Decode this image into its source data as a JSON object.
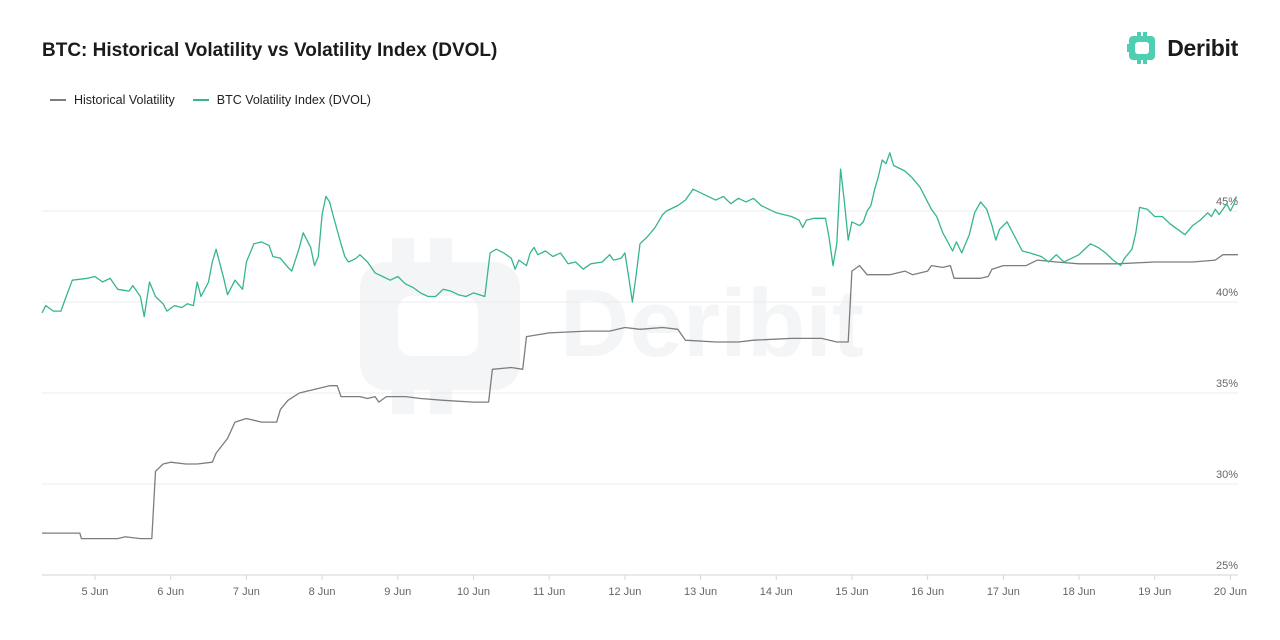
{
  "header": {
    "title": "BTC: Historical Volatility vs Volatility Index (DVOL)"
  },
  "brand": {
    "name": "Deribit",
    "accent": "#4ecfb1",
    "icon": "deribit-logo-icon"
  },
  "watermark": {
    "text": "Deribit"
  },
  "colors": {
    "hv": "#7d7d7d",
    "dvol": "#36b592",
    "grid": "#ececec",
    "axis": "#d6d6d6"
  },
  "chart_data": {
    "type": "line",
    "title": "BTC: Historical Volatility vs Volatility Index (DVOL)",
    "xlabel": "",
    "ylabel": "",
    "x_unit": "days since 4 Jun 00:00",
    "xlim": [
      4.3,
      20.1
    ],
    "ylim": [
      25,
      50
    ],
    "y_ticks": [
      {
        "value": 25,
        "label": "25%"
      },
      {
        "value": 30,
        "label": "30%"
      },
      {
        "value": 35,
        "label": "35%"
      },
      {
        "value": 40,
        "label": "40%"
      },
      {
        "value": 45,
        "label": "45%"
      }
    ],
    "x_ticks": [
      {
        "value": 5,
        "label": "5 Jun"
      },
      {
        "value": 6,
        "label": "6 Jun"
      },
      {
        "value": 7,
        "label": "7 Jun"
      },
      {
        "value": 8,
        "label": "8 Jun"
      },
      {
        "value": 9,
        "label": "9 Jun"
      },
      {
        "value": 10,
        "label": "10 Jun"
      },
      {
        "value": 11,
        "label": "11 Jun"
      },
      {
        "value": 12,
        "label": "12 Jun"
      },
      {
        "value": 13,
        "label": "13 Jun"
      },
      {
        "value": 14,
        "label": "14 Jun"
      },
      {
        "value": 15,
        "label": "15 Jun"
      },
      {
        "value": 16,
        "label": "16 Jun"
      },
      {
        "value": 17,
        "label": "17 Jun"
      },
      {
        "value": 18,
        "label": "18 Jun"
      },
      {
        "value": 19,
        "label": "19 Jun"
      },
      {
        "value": 20,
        "label": "20 Jun"
      }
    ],
    "grid": true,
    "legend": "top-left",
    "series": [
      {
        "name": "Historical Volatility",
        "key": "hv",
        "points": [
          [
            4.3,
            27.3
          ],
          [
            4.8,
            27.3
          ],
          [
            4.82,
            27.0
          ],
          [
            5.2,
            27.0
          ],
          [
            5.3,
            27.0
          ],
          [
            5.4,
            27.1
          ],
          [
            5.6,
            27.0
          ],
          [
            5.75,
            27.0
          ],
          [
            5.8,
            30.7
          ],
          [
            5.9,
            31.1
          ],
          [
            6.0,
            31.2
          ],
          [
            6.2,
            31.1
          ],
          [
            6.35,
            31.1
          ],
          [
            6.55,
            31.2
          ],
          [
            6.6,
            31.7
          ],
          [
            6.75,
            32.5
          ],
          [
            6.85,
            33.4
          ],
          [
            7.0,
            33.6
          ],
          [
            7.2,
            33.4
          ],
          [
            7.4,
            33.4
          ],
          [
            7.45,
            34.1
          ],
          [
            7.55,
            34.6
          ],
          [
            7.7,
            35.0
          ],
          [
            7.9,
            35.2
          ],
          [
            8.1,
            35.4
          ],
          [
            8.2,
            35.4
          ],
          [
            8.25,
            34.8
          ],
          [
            8.5,
            34.8
          ],
          [
            8.6,
            34.7
          ],
          [
            8.7,
            34.8
          ],
          [
            8.75,
            34.5
          ],
          [
            8.85,
            34.8
          ],
          [
            9.1,
            34.8
          ],
          [
            9.3,
            34.7
          ],
          [
            9.6,
            34.6
          ],
          [
            10.0,
            34.5
          ],
          [
            10.2,
            34.5
          ],
          [
            10.25,
            36.3
          ],
          [
            10.5,
            36.4
          ],
          [
            10.65,
            36.3
          ],
          [
            10.7,
            38.1
          ],
          [
            11.0,
            38.3
          ],
          [
            11.5,
            38.4
          ],
          [
            11.8,
            38.4
          ],
          [
            12.0,
            38.6
          ],
          [
            12.2,
            38.5
          ],
          [
            12.5,
            38.6
          ],
          [
            12.7,
            38.5
          ],
          [
            12.8,
            37.9
          ],
          [
            13.2,
            37.8
          ],
          [
            13.5,
            37.8
          ],
          [
            13.7,
            37.9
          ],
          [
            14.2,
            38.0
          ],
          [
            14.6,
            38.0
          ],
          [
            14.8,
            37.8
          ],
          [
            14.95,
            37.8
          ],
          [
            15.0,
            41.7
          ],
          [
            15.1,
            42.0
          ],
          [
            15.2,
            41.5
          ],
          [
            15.5,
            41.5
          ],
          [
            15.7,
            41.7
          ],
          [
            15.8,
            41.5
          ],
          [
            16.0,
            41.7
          ],
          [
            16.05,
            42.0
          ],
          [
            16.2,
            41.9
          ],
          [
            16.3,
            42.0
          ],
          [
            16.35,
            41.3
          ],
          [
            16.7,
            41.3
          ],
          [
            16.8,
            41.4
          ],
          [
            16.85,
            41.8
          ],
          [
            17.0,
            42.0
          ],
          [
            17.3,
            42.0
          ],
          [
            17.45,
            42.3
          ],
          [
            17.7,
            42.2
          ],
          [
            18.0,
            42.1
          ],
          [
            18.5,
            42.1
          ],
          [
            19.0,
            42.2
          ],
          [
            19.5,
            42.2
          ],
          [
            19.8,
            42.3
          ],
          [
            19.9,
            42.6
          ],
          [
            20.1,
            42.6
          ]
        ]
      },
      {
        "name": "BTC Volatility Index (DVOL)",
        "key": "dvol",
        "points": [
          [
            4.3,
            39.4
          ],
          [
            4.35,
            39.8
          ],
          [
            4.45,
            39.5
          ],
          [
            4.55,
            39.5
          ],
          [
            4.62,
            40.3
          ],
          [
            4.7,
            41.2
          ],
          [
            4.9,
            41.3
          ],
          [
            5.0,
            41.4
          ],
          [
            5.1,
            41.1
          ],
          [
            5.2,
            41.3
          ],
          [
            5.3,
            40.7
          ],
          [
            5.45,
            40.6
          ],
          [
            5.5,
            40.9
          ],
          [
            5.6,
            40.3
          ],
          [
            5.65,
            39.2
          ],
          [
            5.72,
            41.1
          ],
          [
            5.8,
            40.3
          ],
          [
            5.9,
            39.9
          ],
          [
            5.95,
            39.5
          ],
          [
            6.05,
            39.8
          ],
          [
            6.15,
            39.7
          ],
          [
            6.22,
            39.9
          ],
          [
            6.3,
            39.8
          ],
          [
            6.35,
            41.1
          ],
          [
            6.4,
            40.3
          ],
          [
            6.5,
            41.1
          ],
          [
            6.55,
            42.2
          ],
          [
            6.6,
            42.9
          ],
          [
            6.7,
            41.3
          ],
          [
            6.75,
            40.4
          ],
          [
            6.85,
            41.2
          ],
          [
            6.95,
            40.7
          ],
          [
            7.0,
            42.2
          ],
          [
            7.1,
            43.2
          ],
          [
            7.2,
            43.3
          ],
          [
            7.3,
            43.1
          ],
          [
            7.35,
            42.5
          ],
          [
            7.45,
            42.4
          ],
          [
            7.55,
            41.9
          ],
          [
            7.6,
            41.7
          ],
          [
            7.7,
            43.0
          ],
          [
            7.75,
            43.8
          ],
          [
            7.85,
            43.0
          ],
          [
            7.9,
            42.0
          ],
          [
            7.95,
            42.5
          ],
          [
            8.0,
            44.8
          ],
          [
            8.05,
            45.8
          ],
          [
            8.1,
            45.5
          ],
          [
            8.15,
            44.7
          ],
          [
            8.25,
            43.2
          ],
          [
            8.3,
            42.5
          ],
          [
            8.35,
            42.2
          ],
          [
            8.45,
            42.4
          ],
          [
            8.5,
            42.6
          ],
          [
            8.6,
            42.2
          ],
          [
            8.7,
            41.6
          ],
          [
            8.8,
            41.4
          ],
          [
            8.9,
            41.2
          ],
          [
            9.0,
            41.4
          ],
          [
            9.1,
            41.0
          ],
          [
            9.2,
            40.8
          ],
          [
            9.3,
            40.5
          ],
          [
            9.4,
            40.3
          ],
          [
            9.5,
            40.3
          ],
          [
            9.6,
            40.7
          ],
          [
            9.7,
            40.6
          ],
          [
            9.8,
            40.4
          ],
          [
            9.9,
            40.3
          ],
          [
            10.0,
            40.5
          ],
          [
            10.15,
            40.3
          ],
          [
            10.22,
            42.7
          ],
          [
            10.3,
            42.9
          ],
          [
            10.4,
            42.7
          ],
          [
            10.5,
            42.4
          ],
          [
            10.55,
            41.8
          ],
          [
            10.6,
            42.3
          ],
          [
            10.7,
            42.0
          ],
          [
            10.75,
            42.7
          ],
          [
            10.8,
            43.0
          ],
          [
            10.85,
            42.6
          ],
          [
            10.95,
            42.8
          ],
          [
            11.05,
            42.5
          ],
          [
            11.15,
            42.7
          ],
          [
            11.25,
            42.1
          ],
          [
            11.35,
            42.2
          ],
          [
            11.45,
            41.8
          ],
          [
            11.55,
            42.1
          ],
          [
            11.7,
            42.2
          ],
          [
            11.8,
            42.6
          ],
          [
            11.85,
            42.3
          ],
          [
            11.95,
            42.4
          ],
          [
            12.0,
            42.7
          ],
          [
            12.05,
            41.4
          ],
          [
            12.1,
            40.0
          ],
          [
            12.15,
            41.5
          ],
          [
            12.2,
            43.2
          ],
          [
            12.3,
            43.6
          ],
          [
            12.4,
            44.1
          ],
          [
            12.5,
            44.8
          ],
          [
            12.55,
            45.0
          ],
          [
            12.7,
            45.3
          ],
          [
            12.8,
            45.6
          ],
          [
            12.9,
            46.2
          ],
          [
            13.0,
            46.0
          ],
          [
            13.1,
            45.8
          ],
          [
            13.2,
            45.6
          ],
          [
            13.3,
            45.8
          ],
          [
            13.4,
            45.4
          ],
          [
            13.5,
            45.7
          ],
          [
            13.6,
            45.5
          ],
          [
            13.7,
            45.7
          ],
          [
            13.8,
            45.3
          ],
          [
            13.9,
            45.1
          ],
          [
            14.0,
            44.9
          ],
          [
            14.1,
            44.8
          ],
          [
            14.2,
            44.7
          ],
          [
            14.3,
            44.5
          ],
          [
            14.35,
            44.1
          ],
          [
            14.4,
            44.5
          ],
          [
            14.5,
            44.6
          ],
          [
            14.65,
            44.6
          ],
          [
            14.7,
            43.5
          ],
          [
            14.75,
            42.0
          ],
          [
            14.8,
            43.2
          ],
          [
            14.85,
            47.3
          ],
          [
            14.9,
            45.5
          ],
          [
            14.95,
            43.4
          ],
          [
            15.0,
            44.4
          ],
          [
            15.1,
            44.2
          ],
          [
            15.15,
            44.4
          ],
          [
            15.2,
            45.0
          ],
          [
            15.25,
            45.3
          ],
          [
            15.3,
            46.2
          ],
          [
            15.35,
            46.9
          ],
          [
            15.4,
            47.8
          ],
          [
            15.45,
            47.6
          ],
          [
            15.5,
            48.2
          ],
          [
            15.55,
            47.5
          ],
          [
            15.7,
            47.2
          ],
          [
            15.8,
            46.8
          ],
          [
            15.9,
            46.3
          ],
          [
            16.0,
            45.5
          ],
          [
            16.05,
            45.1
          ],
          [
            16.12,
            44.7
          ],
          [
            16.2,
            43.8
          ],
          [
            16.28,
            43.2
          ],
          [
            16.33,
            42.8
          ],
          [
            16.38,
            43.3
          ],
          [
            16.45,
            42.7
          ],
          [
            16.55,
            43.7
          ],
          [
            16.62,
            44.9
          ],
          [
            16.7,
            45.5
          ],
          [
            16.78,
            45.1
          ],
          [
            16.85,
            44.2
          ],
          [
            16.9,
            43.4
          ],
          [
            16.95,
            44.0
          ],
          [
            17.05,
            44.4
          ],
          [
            17.15,
            43.6
          ],
          [
            17.25,
            42.8
          ],
          [
            17.35,
            42.7
          ],
          [
            17.5,
            42.5
          ],
          [
            17.6,
            42.2
          ],
          [
            17.7,
            42.6
          ],
          [
            17.8,
            42.2
          ],
          [
            17.9,
            42.4
          ],
          [
            18.0,
            42.6
          ],
          [
            18.1,
            43.0
          ],
          [
            18.15,
            43.2
          ],
          [
            18.25,
            43.0
          ],
          [
            18.35,
            42.7
          ],
          [
            18.45,
            42.3
          ],
          [
            18.55,
            42.0
          ],
          [
            18.6,
            42.4
          ],
          [
            18.7,
            42.9
          ],
          [
            18.75,
            43.8
          ],
          [
            18.8,
            45.2
          ],
          [
            18.9,
            45.1
          ],
          [
            19.0,
            44.7
          ],
          [
            19.1,
            44.7
          ],
          [
            19.2,
            44.3
          ],
          [
            19.3,
            44.0
          ],
          [
            19.4,
            43.7
          ],
          [
            19.5,
            44.2
          ],
          [
            19.6,
            44.5
          ],
          [
            19.7,
            44.9
          ],
          [
            19.75,
            44.7
          ],
          [
            19.8,
            45.1
          ],
          [
            19.85,
            44.8
          ],
          [
            19.9,
            45.1
          ],
          [
            19.95,
            45.4
          ],
          [
            20.0,
            45.0
          ],
          [
            20.05,
            45.4
          ],
          [
            20.08,
            45.8
          ]
        ]
      }
    ]
  }
}
